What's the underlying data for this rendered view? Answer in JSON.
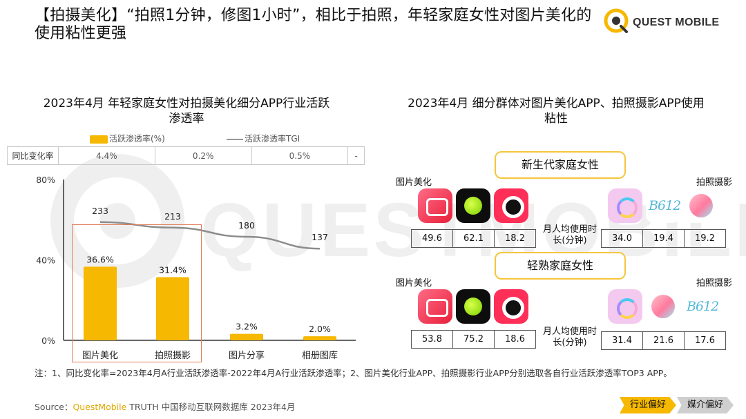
{
  "title": "【拍摄美化】“拍照1分钟，修图1小时”，相比于拍照，年轻家庭女性对图片美化的使用粘性更强",
  "logo": {
    "text": "QUEST MOBILE"
  },
  "watermark": "QUESTMOBILE",
  "left": {
    "subtitle": "2023年4月 年轻家庭女性对拍摄美化细分APP行业活跃渗透率",
    "legend": {
      "bar": "活跃渗透率(%)",
      "line": "活跃渗透率TGI"
    },
    "yoy": {
      "header": "同比变化率",
      "values": [
        "4.4%",
        "0.2%",
        "0.5%",
        "-"
      ]
    }
  },
  "chart_data": {
    "type": "bar",
    "title": "2023年4月 年轻家庭女性对拍摄美化细分APP行业活跃渗透率",
    "categories": [
      "图片美化",
      "拍照摄影",
      "图片分享",
      "相册图库"
    ],
    "series": [
      {
        "name": "活跃渗透率(%)",
        "type": "bar",
        "values": [
          36.6,
          31.4,
          3.2,
          2.0
        ],
        "labels": [
          "36.6%",
          "31.4%",
          "3.2%",
          "2.0%"
        ],
        "color": "#f6b800"
      },
      {
        "name": "活跃渗透率TGI",
        "type": "line",
        "values": [
          233,
          213,
          180,
          137
        ],
        "labels": [
          "233",
          "213",
          "180",
          "137"
        ],
        "color": "#8c8c8c"
      }
    ],
    "yticks": [
      "0%",
      "40%",
      "80%"
    ],
    "ylim": [
      0,
      80
    ],
    "grid": false,
    "legend_position": "top"
  },
  "right": {
    "subtitle": "2023年4月 细分群体对图片美化APP、拍照摄影APP使用粘性",
    "groups": [
      {
        "name": "新生代家庭女性",
        "left_category": "图片美化",
        "right_category": "拍照摄影",
        "duration_label": "月人均使用时长(分钟)",
        "left_icons": [
          "meitu-icon",
          "xingtu-icon",
          "meitu-xiuxiu-icon"
        ],
        "right_icons": [
          "beauty-cam-icon",
          "b612-icon",
          "qingyan-icon"
        ],
        "left_values": [
          "49.6",
          "62.1",
          "18.2"
        ],
        "right_values": [
          "34.0",
          "19.4",
          "19.2"
        ]
      },
      {
        "name": "轻熟家庭女性",
        "left_category": "图片美化",
        "right_category": "拍照摄影",
        "duration_label": "月人均使用时长(分钟)",
        "left_icons": [
          "meitu-icon",
          "xingtu-icon",
          "meitu-xiuxiu-icon"
        ],
        "right_icons": [
          "beauty-cam-icon",
          "qingyan-icon",
          "b612-icon"
        ],
        "left_values": [
          "53.8",
          "75.2",
          "18.6"
        ],
        "right_values": [
          "31.4",
          "21.6",
          "17.6"
        ]
      }
    ],
    "b612_label": "B612"
  },
  "note": "注：1、同比变化率=2023年4月A行业活跃渗透率-2022年4月A行业活跃渗透率；2、图片美化行业APP、拍照摄影行业APP分别选取各自行业活跃渗透率TOP3 APP。",
  "source": {
    "prefix": "Source：",
    "brand": "QuestMobile",
    "rest": " TRUTH 中国移动互联网数据库 2023年4月"
  },
  "nav": {
    "chip1": "行业偏好",
    "chip2": "媒介偏好"
  },
  "colors": {
    "accent": "#f6b800",
    "line": "#8c8c8c",
    "highlight": "#e07b56"
  }
}
